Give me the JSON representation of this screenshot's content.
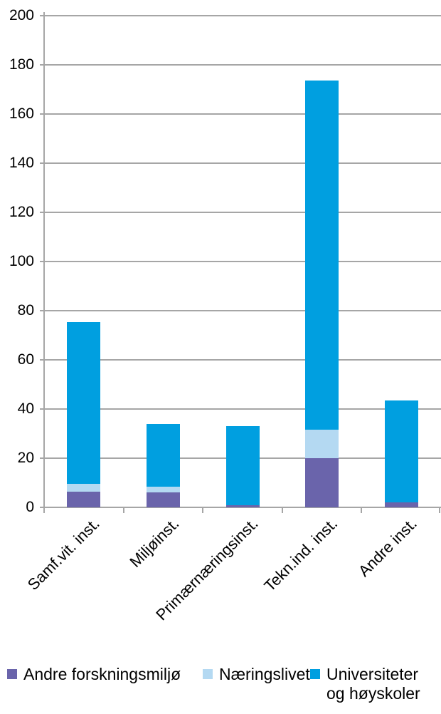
{
  "chart_data": {
    "type": "bar",
    "stacked": true,
    "orientation": "vertical",
    "title": "",
    "categories": [
      "Samf.vit. inst.",
      "Miljøinst.",
      "Primærnæringsinst.",
      "Tekn.ind. inst.",
      "Andre inst."
    ],
    "series": [
      {
        "name": "Andre forskningsmiljø",
        "color": "#6A64AB",
        "values": [
          6.5,
          6,
          1,
          20,
          2
        ]
      },
      {
        "name": "Næringslivet",
        "color": "#B4D9F2",
        "values": [
          3,
          2.5,
          0,
          11.5,
          0
        ]
      },
      {
        "name": "Universiteter og høyskoler",
        "color": "#009FE0",
        "values": [
          66,
          25.5,
          32,
          142,
          41.5
        ]
      }
    ],
    "stack_totals": [
      75.5,
      34,
      33,
      173.5,
      43.5
    ],
    "ylim": [
      0,
      200
    ],
    "yticks": [
      0,
      20,
      40,
      60,
      80,
      100,
      120,
      140,
      160,
      180,
      200
    ],
    "xlabel": "",
    "ylabel": "",
    "grid": "horizontal",
    "gridline_color": "#A6A6A6",
    "axis_text_color": "#000000",
    "legend_position": "bottom",
    "legend": {
      "items": [
        {
          "label": "Andre forskningsmiljø",
          "lines": [
            "Andre forskningsmiljø"
          ],
          "color": "#6A64AB"
        },
        {
          "label": "Næringslivet",
          "lines": [
            "Næringslivet"
          ],
          "color": "#B4D9F2"
        },
        {
          "label": "Universiteter og høyskoler",
          "lines": [
            "Universiteter",
            "og høyskoler"
          ],
          "color": "#009FE0"
        }
      ]
    }
  }
}
